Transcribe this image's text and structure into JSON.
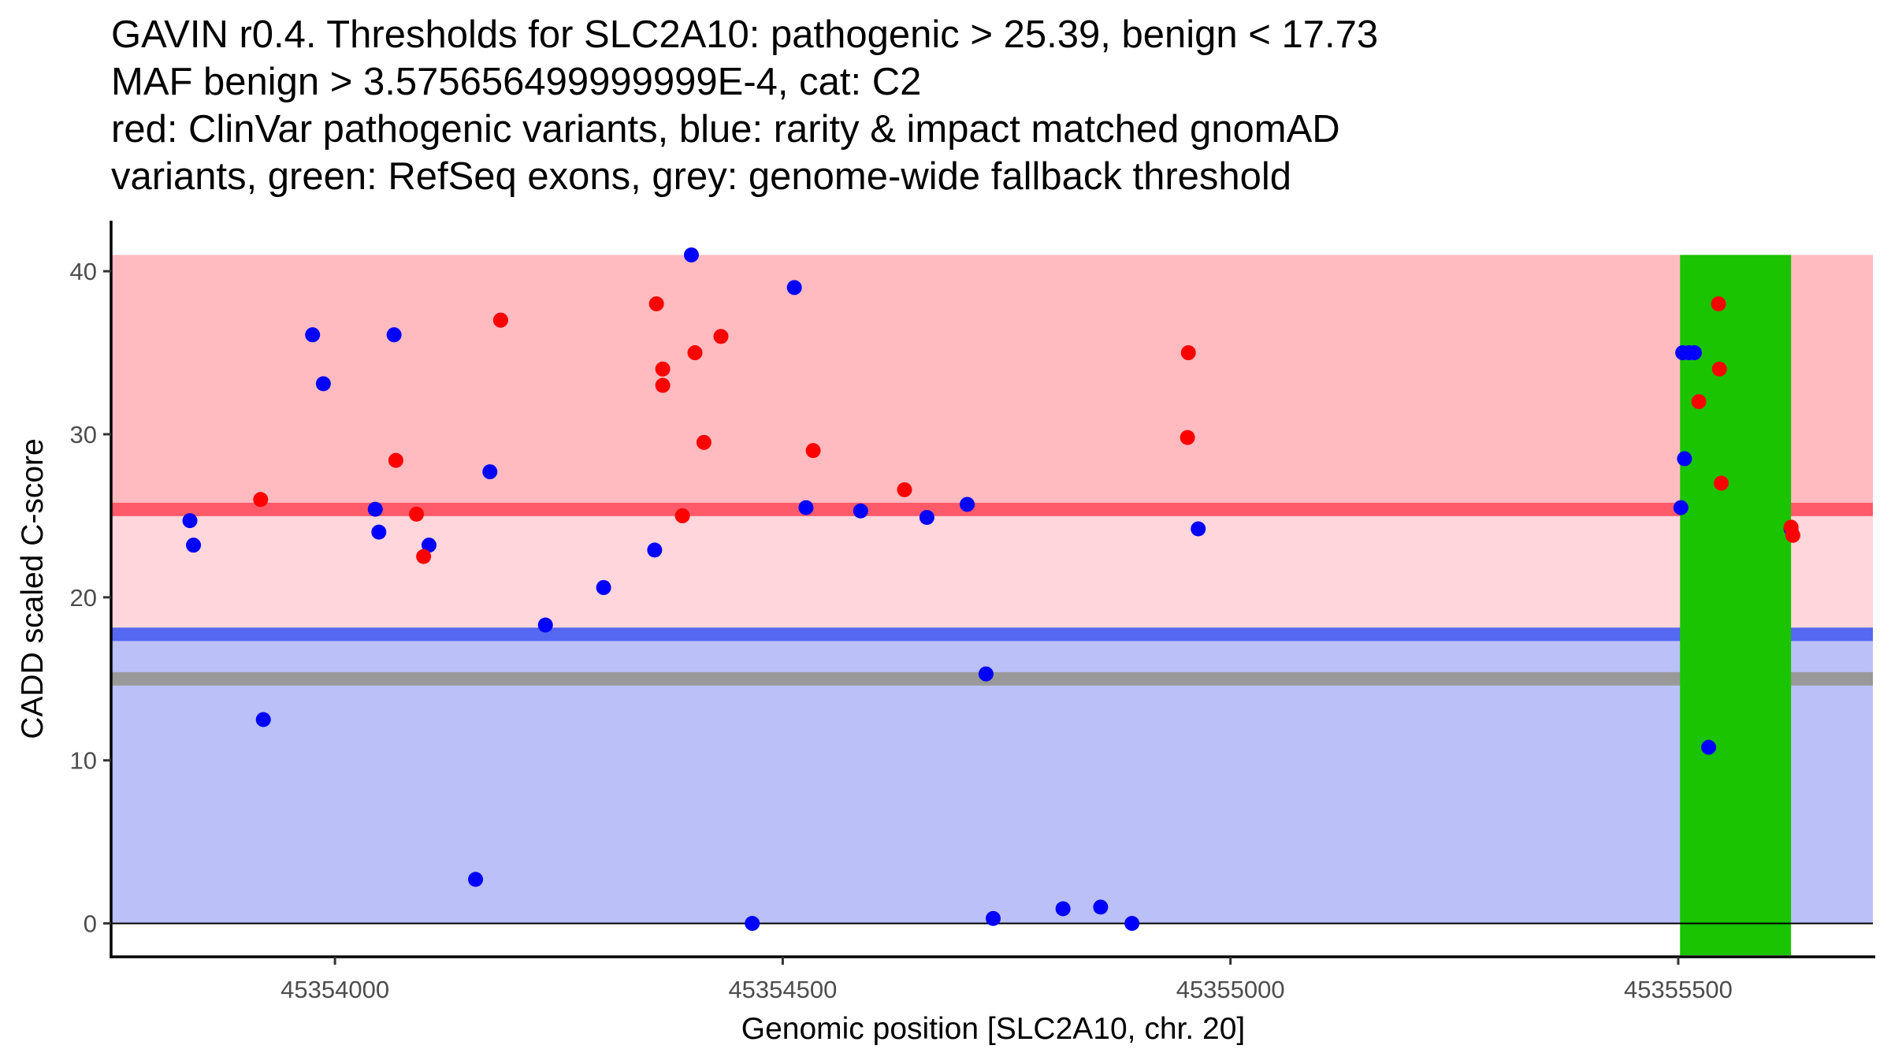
{
  "chart_data": {
    "type": "scatter",
    "title_lines": [
      "GAVIN r0.4. Thresholds for SLC2A10: pathogenic > 25.39, benign < 17.73",
      "MAF benign > 3.575656499999999E-4, cat: C2",
      "red: ClinVar pathogenic variants, blue: rarity & impact matched gnomAD",
      "variants, green: RefSeq exons, grey: genome-wide fallback threshold"
    ],
    "xlabel": "Genomic position [SLC2A10, chr. 20]",
    "ylabel": "CADD scaled C-score",
    "xlim": [
      45353750,
      45355720
    ],
    "ylim": [
      -2.05,
      43.1
    ],
    "x_ticks": [
      45354000,
      45354500,
      45355000,
      45355500
    ],
    "x_tick_labels": [
      "45354000",
      "45354500",
      "45355000",
      "45355500"
    ],
    "y_ticks": [
      0,
      10,
      20,
      30,
      40
    ],
    "y_tick_labels": [
      "0",
      "10",
      "20",
      "30",
      "40"
    ],
    "grid": false,
    "legend": "none",
    "thresholds": {
      "pathogenic": 25.39,
      "benign": 17.73,
      "genome_wide_fallback": 15,
      "max_score": 41
    },
    "colors": {
      "pathogenic_zone": "#ffbbc0",
      "grey_zone": "#ffd6db",
      "benign_zone": "#bbc0f8",
      "pathogenic_line": "#ff5a6a",
      "benign_line": "#5468f2",
      "fallback_line": "#999999",
      "exon": "#1ac400",
      "clinvar_point": "#ff0000",
      "gnomad_point": "#0000ff"
    },
    "exons": [
      {
        "start": 45355502,
        "end": 45355626
      }
    ],
    "series": [
      {
        "name": "gnomAD matched variants",
        "color": "#0000ff",
        "points": [
          [
            45353838,
            24.7
          ],
          [
            45353842,
            23.2
          ],
          [
            45353920,
            12.5
          ],
          [
            45353975,
            36.1
          ],
          [
            45353987,
            33.1
          ],
          [
            45354045,
            25.4
          ],
          [
            45354049,
            24.0
          ],
          [
            45354066,
            36.1
          ],
          [
            45354105,
            23.2
          ],
          [
            45354157,
            2.7
          ],
          [
            45354173,
            27.7
          ],
          [
            45354185,
            37.0
          ],
          [
            45354235,
            18.3
          ],
          [
            45354300,
            20.6
          ],
          [
            45354357,
            22.9
          ],
          [
            45354398,
            41.0
          ],
          [
            45354466,
            0.0
          ],
          [
            45354513,
            39.0
          ],
          [
            45354526,
            25.5
          ],
          [
            45354587,
            25.3
          ],
          [
            45354661,
            24.9
          ],
          [
            45354706,
            25.7
          ],
          [
            45354727,
            15.3
          ],
          [
            45354735,
            0.3
          ],
          [
            45354813,
            0.9
          ],
          [
            45354855,
            1.0
          ],
          [
            45354890,
            0.0
          ],
          [
            45354964,
            24.2
          ],
          [
            45355505,
            35.0
          ],
          [
            45355512,
            35.0
          ],
          [
            45355518,
            35.0
          ],
          [
            45355507,
            28.5
          ],
          [
            45355503,
            25.5
          ],
          [
            45355534,
            10.8
          ],
          [
            45355626,
            24.2
          ]
        ]
      },
      {
        "name": "ClinVar pathogenic variants",
        "color": "#ff0000",
        "points": [
          [
            45353917,
            26.0
          ],
          [
            45354068,
            28.4
          ],
          [
            45354091,
            25.1
          ],
          [
            45354099,
            22.5
          ],
          [
            45354185,
            37.0
          ],
          [
            45354359,
            38.0
          ],
          [
            45354366,
            34.0
          ],
          [
            45354366,
            33.0
          ],
          [
            45354388,
            25.0
          ],
          [
            45354402,
            35.0
          ],
          [
            45354412,
            29.5
          ],
          [
            45354431,
            36.0
          ],
          [
            45354534,
            29.0
          ],
          [
            45354636,
            26.6
          ],
          [
            45354952,
            29.8
          ],
          [
            45354953,
            35.0
          ],
          [
            45355545,
            38.0
          ],
          [
            45355546,
            34.0
          ],
          [
            45355523,
            32.0
          ],
          [
            45355548,
            27.0
          ],
          [
            45355626,
            24.3
          ],
          [
            45355628,
            23.8
          ]
        ]
      }
    ]
  }
}
